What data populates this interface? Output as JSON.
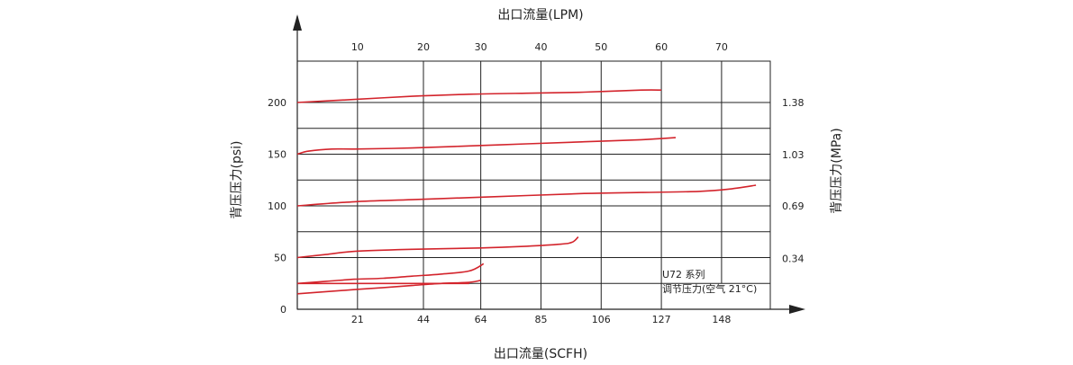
{
  "chart_data": {
    "type": "line",
    "x_bottom": {
      "label": "出口流量(SCFH)",
      "ticks": [
        "0",
        "21",
        "44",
        "64",
        "85",
        "106",
        "127",
        "148"
      ],
      "range": [
        0,
        165
      ]
    },
    "x_top": {
      "label": "出口流量(LPM)",
      "ticks": [
        "10",
        "20",
        "30",
        "40",
        "50",
        "60",
        "70"
      ]
    },
    "y_left": {
      "label": "背压压力(psi)",
      "ticks": [
        "0",
        "50",
        "100",
        "150",
        "200"
      ],
      "range": [
        0,
        240
      ]
    },
    "y_right": {
      "label": "背压压力(MPa)",
      "ticks": [
        "0.34",
        "0.69",
        "1.03",
        "1.38"
      ]
    },
    "grid": true,
    "annotation": {
      "line1": "U72 系列",
      "line2": "调节压力(空气 21°C)"
    },
    "line_color": "#d3242c",
    "series": [
      {
        "x": [
          0,
          20,
          40,
          60,
          80,
          100,
          120,
          127
        ],
        "y": [
          200,
          203,
          206,
          208,
          209,
          210,
          212,
          212
        ]
      },
      {
        "x": [
          0,
          4,
          12,
          20,
          40,
          60,
          80,
          100,
          120,
          132
        ],
        "y": [
          150,
          153,
          155,
          155,
          156,
          158,
          160,
          162,
          164,
          166
        ]
      },
      {
        "x": [
          0,
          20,
          40,
          60,
          80,
          100,
          120,
          140,
          150,
          160
        ],
        "y": [
          100,
          104,
          106,
          108,
          110,
          112,
          113,
          114,
          116,
          120
        ]
      },
      {
        "x": [
          0,
          10,
          20,
          40,
          60,
          80,
          92,
          96,
          98
        ],
        "y": [
          50,
          53,
          56,
          58,
          59,
          61,
          63,
          65,
          70
        ]
      },
      {
        "x": [
          0,
          10,
          20,
          30,
          40,
          50,
          60,
          65
        ],
        "y": [
          25,
          27,
          29,
          30,
          32,
          34,
          37,
          44
        ]
      },
      {
        "x": [
          0,
          10,
          20,
          30,
          40,
          50,
          60,
          64
        ],
        "y": [
          15,
          17,
          19,
          21,
          23,
          25,
          26,
          28
        ]
      },
      {
        "x": [
          0,
          60
        ],
        "y": [
          25,
          25
        ]
      }
    ]
  }
}
